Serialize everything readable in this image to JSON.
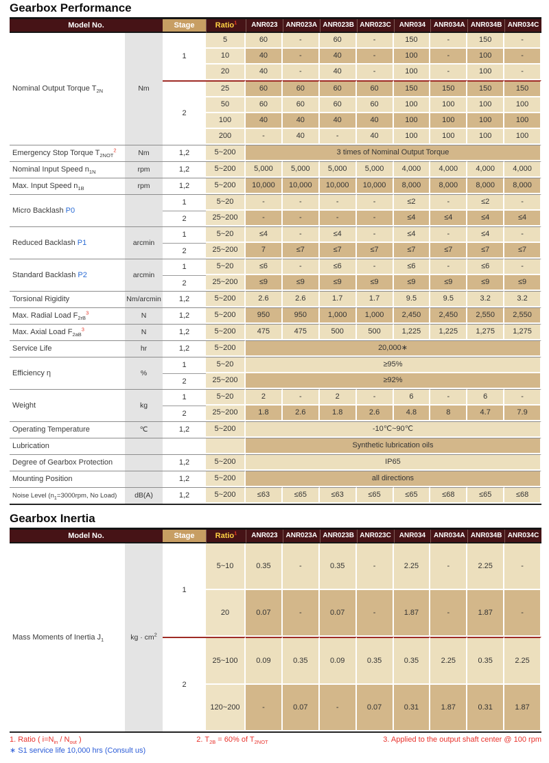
{
  "page": {
    "title1": "Gearbox Performance",
    "title2": "Gearbox Inertia"
  },
  "colors": {
    "header_maroon": "#461316",
    "stage_gold": "#c79e63",
    "ratio_yellow": "#ffd143",
    "ratio_sup_red": "#ee3d23",
    "accent_red_sup": "#e8392a",
    "backlash_blue": "#2a6bd4",
    "cell_light": "#ecdfbd",
    "cell_dark": "#d3b78a",
    "ratio_column": "#eee2c3",
    "unit_gray": "#e4e4e4",
    "stage_divider_red": "#9e2b25",
    "footnote_red": "#e8302a",
    "footnote_blue": "#2a5bd7"
  },
  "header": {
    "model_no": "Model No.",
    "stage": "Stage",
    "ratio": "Ratio",
    "ratio_sup": "1",
    "models": [
      "ANR023",
      "ANR023A",
      "ANR023B",
      "ANR023C",
      "ANR034",
      "ANR034A",
      "ANR034B",
      "ANR034C"
    ]
  },
  "performance": {
    "groups": [
      {
        "label": [
          {
            "t": "Nominal Output Torque T"
          },
          {
            "t": "2N",
            "s": "sub"
          }
        ],
        "unit": "Nm",
        "blocks": [
          {
            "stage": "1",
            "rows": [
              {
                "ratio": "5",
                "cells": [
                  "60",
                  "-",
                  "60",
                  "-",
                  "150",
                  "-",
                  "150",
                  "-"
                ]
              },
              {
                "ratio": "10",
                "cells": [
                  "40",
                  "-",
                  "40",
                  "-",
                  "100",
                  "-",
                  "100",
                  "-"
                ]
              },
              {
                "ratio": "20",
                "cells": [
                  "40",
                  "-",
                  "40",
                  "-",
                  "100",
                  "-",
                  "100",
                  "-"
                ]
              }
            ]
          },
          {
            "stage": "2",
            "red": true,
            "rows": [
              {
                "ratio": "25",
                "cells": [
                  "60",
                  "60",
                  "60",
                  "60",
                  "150",
                  "150",
                  "150",
                  "150"
                ]
              },
              {
                "ratio": "50",
                "cells": [
                  "60",
                  "60",
                  "60",
                  "60",
                  "100",
                  "100",
                  "100",
                  "100"
                ]
              },
              {
                "ratio": "100",
                "cells": [
                  "40",
                  "40",
                  "40",
                  "40",
                  "100",
                  "100",
                  "100",
                  "100"
                ]
              },
              {
                "ratio": "200",
                "cells": [
                  "-",
                  "40",
                  "-",
                  "40",
                  "100",
                  "100",
                  "100",
                  "100"
                ]
              }
            ]
          }
        ]
      },
      {
        "label": [
          {
            "t": "Emergency Stop Torque T"
          },
          {
            "t": "2NOT",
            "s": "sub"
          },
          {
            "t": "2",
            "s": "sup",
            "c": "#e8392a"
          }
        ],
        "unit": "Nm",
        "blocks": [
          {
            "stage": "1,2",
            "rows": [
              {
                "ratio": "5~200",
                "span": "3 times of Nominal Output Torque"
              }
            ]
          }
        ]
      },
      {
        "label": [
          {
            "t": "Nominal Input Speed n"
          },
          {
            "t": "1N",
            "s": "sub"
          }
        ],
        "unit": "rpm",
        "blocks": [
          {
            "stage": "1,2",
            "rows": [
              {
                "ratio": "5~200",
                "cells": [
                  "5,000",
                  "5,000",
                  "5,000",
                  "5,000",
                  "4,000",
                  "4,000",
                  "4,000",
                  "4,000"
                ]
              }
            ]
          }
        ]
      },
      {
        "label": [
          {
            "t": "Max. Input Speed n"
          },
          {
            "t": "1B",
            "s": "sub"
          }
        ],
        "unit": "rpm",
        "blocks": [
          {
            "stage": "1,2",
            "rows": [
              {
                "ratio": "5~200",
                "cells": [
                  "10,000",
                  "10,000",
                  "10,000",
                  "10,000",
                  "8,000",
                  "8,000",
                  "8,000",
                  "8,000"
                ]
              }
            ]
          }
        ]
      },
      {
        "label": [
          {
            "t": "Micro Backlash "
          },
          {
            "t": "P0",
            "c": "#2a6bd4"
          }
        ],
        "unit": "",
        "blocks": [
          {
            "stage": "1",
            "rows": [
              {
                "ratio": "5~20",
                "cells": [
                  "-",
                  "-",
                  "-",
                  "-",
                  "≤2",
                  "-",
                  "≤2",
                  "-"
                ]
              }
            ]
          },
          {
            "stage": "2",
            "rows": [
              {
                "ratio": "25~200",
                "cells": [
                  "-",
                  "-",
                  "-",
                  "-",
                  "≤4",
                  "≤4",
                  "≤4",
                  "≤4"
                ]
              }
            ]
          }
        ]
      },
      {
        "label": [
          {
            "t": "Reduced Backlash "
          },
          {
            "t": "P1",
            "c": "#2a6bd4"
          }
        ],
        "unit": "arcmin",
        "blocks": [
          {
            "stage": "1",
            "rows": [
              {
                "ratio": "5~20",
                "cells": [
                  "≤4",
                  "-",
                  "≤4",
                  "-",
                  "≤4",
                  "-",
                  "≤4",
                  "-"
                ]
              }
            ]
          },
          {
            "stage": "2",
            "rows": [
              {
                "ratio": "25~200",
                "cells": [
                  "7",
                  "≤7",
                  "≤7",
                  "≤7",
                  "≤7",
                  "≤7",
                  "≤7",
                  "≤7"
                ]
              }
            ]
          }
        ]
      },
      {
        "label": [
          {
            "t": "Standard Backlash "
          },
          {
            "t": "P2",
            "c": "#2a6bd4"
          }
        ],
        "unit": "arcmin",
        "blocks": [
          {
            "stage": "1",
            "rows": [
              {
                "ratio": "5~20",
                "cells": [
                  "≤6",
                  "-",
                  "≤6",
                  "-",
                  "≤6",
                  "-",
                  "≤6",
                  "-"
                ]
              }
            ]
          },
          {
            "stage": "2",
            "rows": [
              {
                "ratio": "25~200",
                "cells": [
                  "≤9",
                  "≤9",
                  "≤9",
                  "≤9",
                  "≤9",
                  "≤9",
                  "≤9",
                  "≤9"
                ]
              }
            ]
          }
        ]
      },
      {
        "label": "Torsional Rigidity",
        "unit": "Nm/arcmin",
        "blocks": [
          {
            "stage": "1,2",
            "rows": [
              {
                "ratio": "5~200",
                "cells": [
                  "2.6",
                  "2.6",
                  "1.7",
                  "1.7",
                  "9.5",
                  "9.5",
                  "3.2",
                  "3.2"
                ]
              }
            ]
          }
        ]
      },
      {
        "label": [
          {
            "t": "Max. Radial Load F"
          },
          {
            "t": "2rB",
            "s": "sub"
          },
          {
            "t": "3",
            "s": "sup",
            "c": "#e8392a"
          }
        ],
        "unit": "N",
        "blocks": [
          {
            "stage": "1,2",
            "rows": [
              {
                "ratio": "5~200",
                "cells": [
                  "950",
                  "950",
                  "1,000",
                  "1,000",
                  "2,450",
                  "2,450",
                  "2,550",
                  "2,550"
                ]
              }
            ]
          }
        ]
      },
      {
        "label": [
          {
            "t": "Max. Axial Load F"
          },
          {
            "t": "2aB",
            "s": "sub"
          },
          {
            "t": "3",
            "s": "sup",
            "c": "#e8392a"
          }
        ],
        "unit": "N",
        "blocks": [
          {
            "stage": "1,2",
            "rows": [
              {
                "ratio": "5~200",
                "cells": [
                  "475",
                  "475",
                  "500",
                  "500",
                  "1,225",
                  "1,225",
                  "1,275",
                  "1,275"
                ]
              }
            ]
          }
        ]
      },
      {
        "label": "Service Life",
        "unit": "hr",
        "blocks": [
          {
            "stage": "1,2",
            "rows": [
              {
                "ratio": "5~200",
                "span": "20,000∗"
              }
            ]
          }
        ]
      },
      {
        "label": "Efficiency η",
        "unit": "%",
        "blocks": [
          {
            "stage": "1",
            "rows": [
              {
                "ratio": "5~20",
                "span": "≥95%"
              }
            ]
          },
          {
            "stage": "2",
            "rows": [
              {
                "ratio": "25~200",
                "span": "≥92%"
              }
            ]
          }
        ]
      },
      {
        "label": "Weight",
        "unit": "kg",
        "blocks": [
          {
            "stage": "1",
            "rows": [
              {
                "ratio": "5~20",
                "cells": [
                  "2",
                  "-",
                  "2",
                  "-",
                  "6",
                  "-",
                  "6",
                  "-"
                ]
              }
            ]
          },
          {
            "stage": "2",
            "rows": [
              {
                "ratio": "25~200",
                "cells": [
                  "1.8",
                  "2.6",
                  "1.8",
                  "2.6",
                  "4.8",
                  "8",
                  "4.7",
                  "7.9"
                ]
              }
            ]
          }
        ]
      },
      {
        "label": "Operating Temperature",
        "unit": "℃",
        "blocks": [
          {
            "stage": "1,2",
            "rows": [
              {
                "ratio": "5~200",
                "span": "-10℃~90℃"
              }
            ]
          }
        ]
      },
      {
        "label": "Lubrication",
        "unit": "",
        "blocks": [
          {
            "stage": "",
            "rows": [
              {
                "ratio": "",
                "span": "Synthetic lubrication oils"
              }
            ]
          }
        ]
      },
      {
        "label": "Degree of Gearbox Protection",
        "unit": "",
        "blocks": [
          {
            "stage": "1,2",
            "rows": [
              {
                "ratio": "5~200",
                "span": "IP65"
              }
            ]
          }
        ]
      },
      {
        "label": "Mounting Position",
        "unit": "",
        "blocks": [
          {
            "stage": "1,2",
            "rows": [
              {
                "ratio": "5~200",
                "span": "all directions"
              }
            ]
          }
        ]
      },
      {
        "label": [
          {
            "t": "Noise Level (n"
          },
          {
            "t": "1",
            "s": "sub"
          },
          {
            "t": "=3000rpm, No Load)"
          }
        ],
        "small": true,
        "unit": "dB(A)",
        "blocks": [
          {
            "stage": "1,2",
            "rows": [
              {
                "ratio": "5~200",
                "cells": [
                  "≤63",
                  "≤65",
                  "≤63",
                  "≤65",
                  "≤65",
                  "≤68",
                  "≤65",
                  "≤68"
                ]
              }
            ]
          }
        ]
      }
    ]
  },
  "inertia": {
    "groups": [
      {
        "label": [
          {
            "t": "Mass Moments of Inertia J"
          },
          {
            "t": "1",
            "s": "sub"
          }
        ],
        "unit": [
          {
            "t": "kg · cm"
          },
          {
            "t": "2",
            "s": "sup"
          }
        ],
        "blocks": [
          {
            "stage": "1",
            "rows": [
              {
                "ratio": "5~10",
                "cells": [
                  "0.35",
                  "-",
                  "0.35",
                  "-",
                  "2.25",
                  "-",
                  "2.25",
                  "-"
                ]
              },
              {
                "ratio": "20",
                "cells": [
                  "0.07",
                  "-",
                  "0.07",
                  "-",
                  "1.87",
                  "-",
                  "1.87",
                  "-"
                ]
              }
            ]
          },
          {
            "stage": "2",
            "red": true,
            "rows": [
              {
                "ratio": "25~100",
                "cells": [
                  "0.09",
                  "0.35",
                  "0.09",
                  "0.35",
                  "0.35",
                  "2.25",
                  "0.35",
                  "2.25"
                ]
              },
              {
                "ratio": "120~200",
                "cells": [
                  "-",
                  "0.07",
                  "-",
                  "0.07",
                  "0.31",
                  "1.87",
                  "0.31",
                  "1.87"
                ]
              }
            ]
          }
        ]
      }
    ]
  },
  "footnotes": {
    "note1": [
      {
        "t": "1. Ratio ( i=N"
      },
      {
        "t": "in",
        "s": "sub"
      },
      {
        "t": " / N"
      },
      {
        "t": "out",
        "s": "sub"
      },
      {
        "t": " )"
      }
    ],
    "note2": [
      {
        "t": "2. T"
      },
      {
        "t": "2B",
        "s": "sub"
      },
      {
        "t": " = 60% of T"
      },
      {
        "t": "2NOT",
        "s": "sub"
      }
    ],
    "note3": "3. Applied to the output shaft center @ 100 rpm",
    "service_note": "∗ S1 service life 10,000 hrs (Consult us)"
  }
}
